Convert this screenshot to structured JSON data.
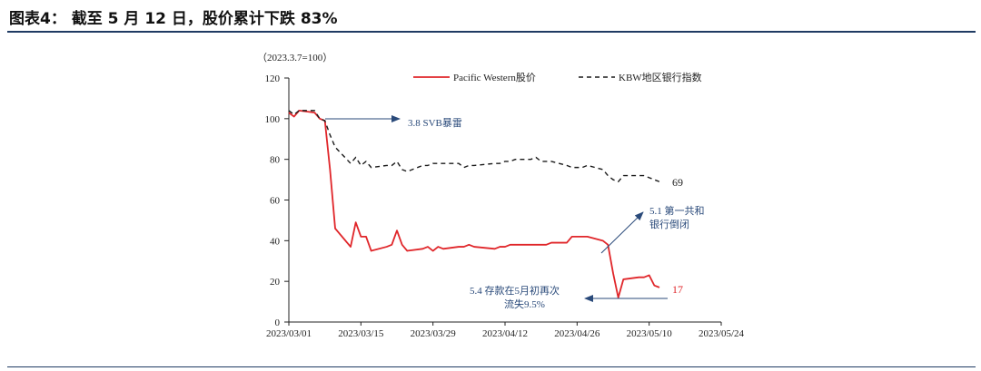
{
  "figure": {
    "title": "图表4： 截至 5 月 12 日，股价累计下跌 83%"
  },
  "colors": {
    "pacwest": "#e0262a",
    "kbw": "#1a1a1a",
    "annotation": "#2a4a7a",
    "rule": "#1f3b63"
  },
  "chart_data": {
    "type": "line",
    "unit_note": "（2023.3.7=100）",
    "xlim": [
      "2023-03-01",
      "2023-05-24"
    ],
    "ylim": [
      0,
      120
    ],
    "yticks": [
      0,
      20,
      40,
      60,
      80,
      100,
      120
    ],
    "xticks": [
      {
        "date": "2023-03-01",
        "label": "2023/03/01"
      },
      {
        "date": "2023-03-15",
        "label": "2023/03/15"
      },
      {
        "date": "2023-03-29",
        "label": "2023/03/29"
      },
      {
        "date": "2023-04-12",
        "label": "2023/04/12"
      },
      {
        "date": "2023-04-26",
        "label": "2023/04/26"
      },
      {
        "date": "2023-05-10",
        "label": "2023/05/10"
      },
      {
        "date": "2023-05-24",
        "label": "2023/05/24"
      }
    ],
    "legend_position": "top",
    "series": [
      {
        "name": "Pacific Western股价",
        "style": "solid",
        "color": "#e0262a",
        "end_label": "17",
        "points": [
          [
            "2023-03-01",
            103
          ],
          [
            "2023-03-02",
            101
          ],
          [
            "2023-03-03",
            104
          ],
          [
            "2023-03-06",
            103
          ],
          [
            "2023-03-07",
            100
          ],
          [
            "2023-03-08",
            99
          ],
          [
            "2023-03-09",
            75
          ],
          [
            "2023-03-10",
            46
          ],
          [
            "2023-03-13",
            37
          ],
          [
            "2023-03-14",
            49
          ],
          [
            "2023-03-15",
            42
          ],
          [
            "2023-03-16",
            42
          ],
          [
            "2023-03-17",
            35
          ],
          [
            "2023-03-20",
            37
          ],
          [
            "2023-03-21",
            38
          ],
          [
            "2023-03-22",
            45
          ],
          [
            "2023-03-23",
            38
          ],
          [
            "2023-03-24",
            35
          ],
          [
            "2023-03-27",
            36
          ],
          [
            "2023-03-28",
            37
          ],
          [
            "2023-03-29",
            35
          ],
          [
            "2023-03-30",
            37
          ],
          [
            "2023-03-31",
            36
          ],
          [
            "2023-04-03",
            37
          ],
          [
            "2023-04-04",
            37
          ],
          [
            "2023-04-05",
            38
          ],
          [
            "2023-04-06",
            37
          ],
          [
            "2023-04-10",
            36
          ],
          [
            "2023-04-11",
            37
          ],
          [
            "2023-04-12",
            37
          ],
          [
            "2023-04-13",
            38
          ],
          [
            "2023-04-14",
            38
          ],
          [
            "2023-04-17",
            38
          ],
          [
            "2023-04-18",
            38
          ],
          [
            "2023-04-19",
            38
          ],
          [
            "2023-04-20",
            38
          ],
          [
            "2023-04-21",
            39
          ],
          [
            "2023-04-24",
            39
          ],
          [
            "2023-04-25",
            42
          ],
          [
            "2023-04-26",
            42
          ],
          [
            "2023-04-27",
            42
          ],
          [
            "2023-04-28",
            42
          ],
          [
            "2023-05-01",
            40
          ],
          [
            "2023-05-02",
            38
          ],
          [
            "2023-05-03",
            24
          ],
          [
            "2023-05-04",
            12
          ],
          [
            "2023-05-05",
            21
          ],
          [
            "2023-05-08",
            22
          ],
          [
            "2023-05-09",
            22
          ],
          [
            "2023-05-10",
            23
          ],
          [
            "2023-05-11",
            18
          ],
          [
            "2023-05-12",
            17
          ]
        ]
      },
      {
        "name": "KBW地区银行指数",
        "style": "dashed",
        "color": "#1a1a1a",
        "end_label": "69",
        "points": [
          [
            "2023-03-01",
            104
          ],
          [
            "2023-03-02",
            102
          ],
          [
            "2023-03-03",
            104
          ],
          [
            "2023-03-06",
            104
          ],
          [
            "2023-03-07",
            100
          ],
          [
            "2023-03-08",
            99
          ],
          [
            "2023-03-09",
            92
          ],
          [
            "2023-03-10",
            86
          ],
          [
            "2023-03-13",
            78
          ],
          [
            "2023-03-14",
            81
          ],
          [
            "2023-03-15",
            77
          ],
          [
            "2023-03-16",
            79
          ],
          [
            "2023-03-17",
            76
          ],
          [
            "2023-03-20",
            77
          ],
          [
            "2023-03-21",
            77
          ],
          [
            "2023-03-22",
            79
          ],
          [
            "2023-03-23",
            75
          ],
          [
            "2023-03-24",
            74
          ],
          [
            "2023-03-27",
            77
          ],
          [
            "2023-03-28",
            77
          ],
          [
            "2023-03-29",
            78
          ],
          [
            "2023-03-30",
            78
          ],
          [
            "2023-03-31",
            78
          ],
          [
            "2023-04-03",
            78
          ],
          [
            "2023-04-04",
            76
          ],
          [
            "2023-04-05",
            77
          ],
          [
            "2023-04-06",
            77
          ],
          [
            "2023-04-10",
            78
          ],
          [
            "2023-04-11",
            78
          ],
          [
            "2023-04-12",
            79
          ],
          [
            "2023-04-13",
            79
          ],
          [
            "2023-04-14",
            80
          ],
          [
            "2023-04-17",
            80
          ],
          [
            "2023-04-18",
            81
          ],
          [
            "2023-04-19",
            79
          ],
          [
            "2023-04-20",
            79
          ],
          [
            "2023-04-21",
            79
          ],
          [
            "2023-04-24",
            77
          ],
          [
            "2023-04-25",
            76
          ],
          [
            "2023-04-26",
            76
          ],
          [
            "2023-04-27",
            76
          ],
          [
            "2023-04-28",
            77
          ],
          [
            "2023-05-01",
            75
          ],
          [
            "2023-05-02",
            72
          ],
          [
            "2023-05-03",
            70
          ],
          [
            "2023-05-04",
            69
          ],
          [
            "2023-05-05",
            72
          ],
          [
            "2023-05-08",
            72
          ],
          [
            "2023-05-09",
            72
          ],
          [
            "2023-05-10",
            71
          ],
          [
            "2023-05-11",
            70
          ],
          [
            "2023-05-12",
            69
          ]
        ]
      }
    ],
    "annotations": [
      {
        "lines": [
          "3.8 SVB暴雷"
        ]
      },
      {
        "lines": [
          "5.1 第一共和",
          "银行倒闭"
        ]
      },
      {
        "lines": [
          "5.4 存款在5月初再次",
          "流失9.5%"
        ]
      }
    ]
  }
}
